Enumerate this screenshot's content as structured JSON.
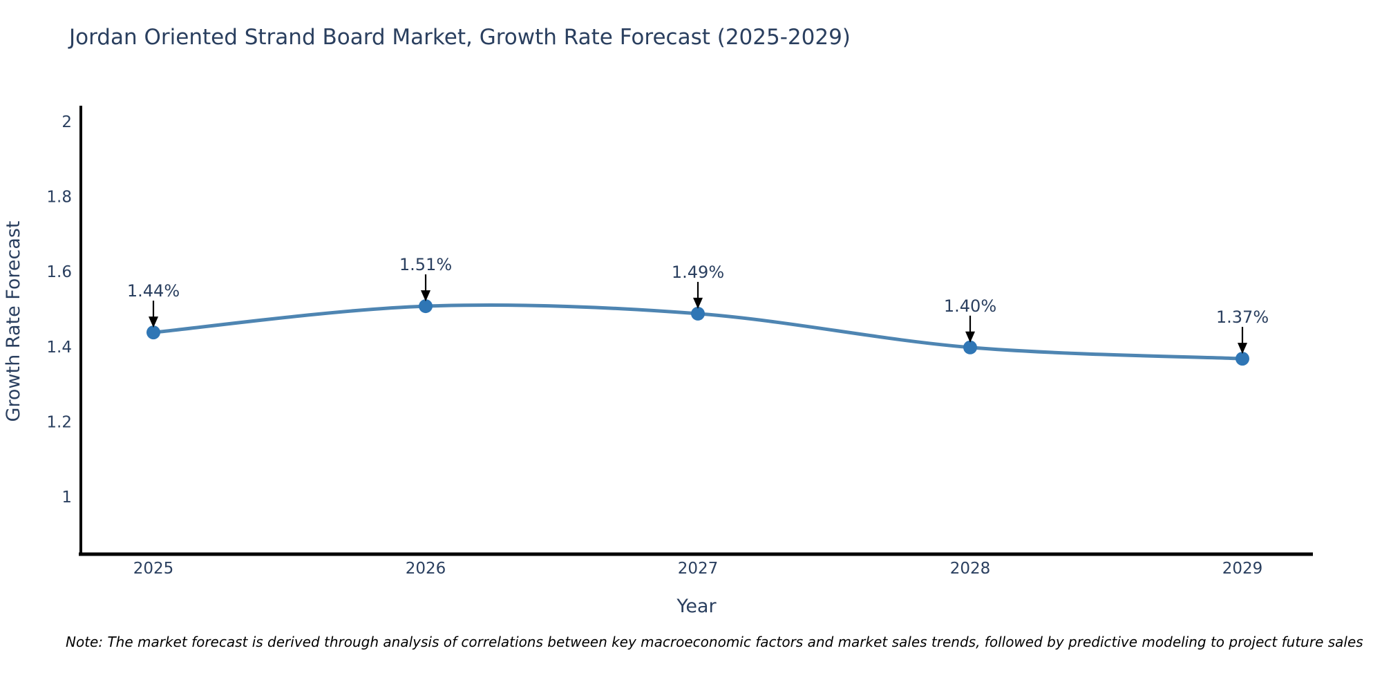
{
  "title": "Jordan Oriented Strand Board Market, Growth Rate Forecast (2025-2029)",
  "footnote": "Note: The market forecast is derived through analysis of correlations between key macroeconomic factors and market sales trends, followed by predictive modeling to project future sales",
  "chart_data": {
    "type": "line",
    "title": "Jordan Oriented Strand Board Market, Growth Rate Forecast (2025-2029)",
    "xlabel": "Year",
    "ylabel": "Growth Rate Forecast",
    "categories": [
      "2025",
      "2026",
      "2027",
      "2028",
      "2029"
    ],
    "x": [
      2025,
      2026,
      2027,
      2028,
      2029
    ],
    "values": [
      1.44,
      1.51,
      1.49,
      1.4,
      1.37
    ],
    "point_labels": [
      "1.44%",
      "1.51%",
      "1.49%",
      "1.40%",
      "1.37%"
    ],
    "y_tick_values": [
      1,
      1.2,
      1.4,
      1.6,
      1.8,
      2
    ],
    "y_tick_labels": [
      "1",
      "1.2",
      "1.4",
      "1.6",
      "1.8",
      "2"
    ],
    "ylim": [
      0.85,
      2.1
    ],
    "grid": false,
    "legend_position": "none",
    "line_shape": "spline",
    "annotation_style": "value label with downward black arrow onto each marker",
    "colors": {
      "line": "#4e85b2",
      "marker": "#2f76b5",
      "axis": "#000000",
      "text": "#2a3f5f",
      "annotation_text": "#2a3f5f",
      "annotation_arrow": "#000000",
      "note_text": "#000000",
      "background": "#ffffff"
    }
  }
}
